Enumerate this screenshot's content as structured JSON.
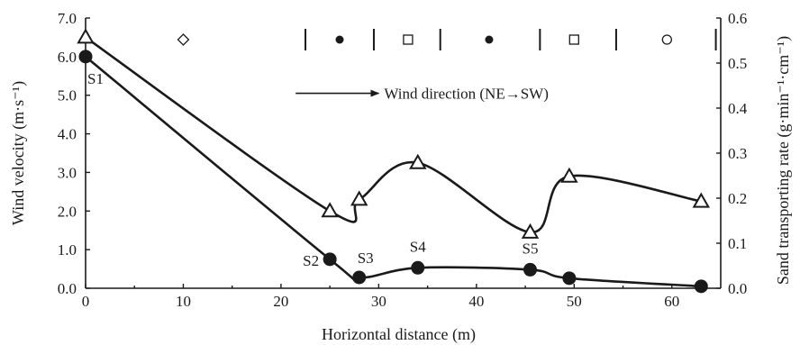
{
  "chart_data": {
    "type": "line",
    "xlabel": "Horizontal distance (m)",
    "ylabel_left": "Wind velocity (m·s⁻¹)",
    "ylabel_right": "Sand transporting rate (g·min⁻¹·cm⁻¹)",
    "xlim": [
      0,
      65
    ],
    "ylim_left": [
      0,
      7
    ],
    "ylim_right": [
      0,
      0.6
    ],
    "x_ticks": [
      "0",
      "10",
      "20",
      "30",
      "40",
      "50",
      "60"
    ],
    "y_left_ticks": [
      "0.0",
      "1.0",
      "2.0",
      "3.0",
      "4.0",
      "5.0",
      "6.0",
      "7.0"
    ],
    "y_right_ticks": [
      "0.0",
      "0.1",
      "0.2",
      "0.3",
      "0.4",
      "0.5",
      "0.6"
    ],
    "series": [
      {
        "axis": "left",
        "marker": "triangle",
        "points": [
          {
            "x": 0,
            "y": 6.5
          },
          {
            "x": 25,
            "y": 2.0
          },
          {
            "x": 28,
            "y": 2.3
          },
          {
            "x": 34,
            "y": 3.25
          },
          {
            "x": 45.5,
            "y": 1.45
          },
          {
            "x": 49.5,
            "y": 2.9
          },
          {
            "x": 63,
            "y": 2.25
          }
        ]
      },
      {
        "axis": "left",
        "marker": "circle",
        "points": [
          {
            "x": 0,
            "y": 6.0
          },
          {
            "x": 25,
            "y": 0.75
          },
          {
            "x": 28,
            "y": 0.28
          },
          {
            "x": 34,
            "y": 0.53
          },
          {
            "x": 45.5,
            "y": 0.48
          },
          {
            "x": 49.5,
            "y": 0.26
          },
          {
            "x": 63,
            "y": 0.05
          }
        ]
      }
    ],
    "site_labels": [
      {
        "text": "S1",
        "x": 0,
        "y": 6.0
      },
      {
        "text": "S2",
        "x": 25,
        "y": 0.75
      },
      {
        "text": "S3",
        "x": 28,
        "y": 0.28
      },
      {
        "text": "S4",
        "x": 34,
        "y": 0.53
      },
      {
        "text": "S5",
        "x": 45.5,
        "y": 0.48
      }
    ],
    "wind_direction_label": "Wind direction (NE→SW)",
    "zone_dividers_x": [
      22.5,
      29.5,
      36.3,
      46.5,
      54.3,
      64.5
    ],
    "zone_symbols": [
      {
        "x": 10,
        "symbol": "open-diamond"
      },
      {
        "x": 26,
        "symbol": "filled-circle"
      },
      {
        "x": 33,
        "symbol": "open-square"
      },
      {
        "x": 41.3,
        "symbol": "filled-circle"
      },
      {
        "x": 50,
        "symbol": "open-square"
      },
      {
        "x": 59.5,
        "symbol": "open-circle"
      }
    ]
  }
}
